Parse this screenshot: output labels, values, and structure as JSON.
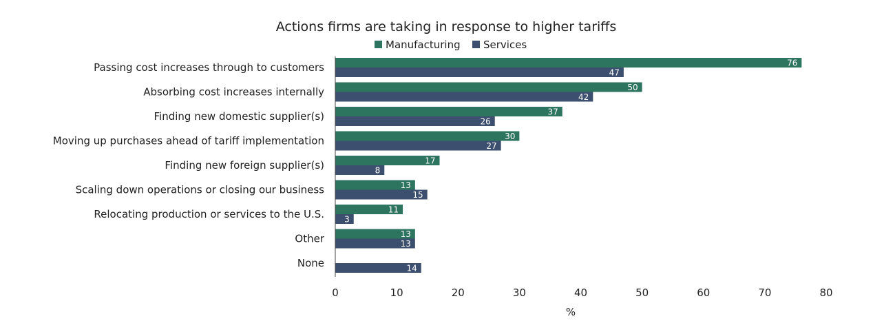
{
  "chart_data": {
    "type": "bar",
    "orientation": "horizontal",
    "title": "Actions firms are taking in response to higher tariffs",
    "xlabel": "%",
    "ylabel": "",
    "xlim": [
      0,
      80
    ],
    "xticks": [
      0,
      10,
      20,
      30,
      40,
      50,
      60,
      70,
      80
    ],
    "grid": false,
    "legend_position": "top",
    "categories": [
      "Passing cost increases through to customers",
      "Absorbing cost increases internally",
      "Finding new domestic supplier(s)",
      "Moving up purchases ahead of tariff implementation",
      "Finding new foreign supplier(s)",
      "Scaling down operations or closing our business",
      "Relocating production or services to the U.S.",
      "Other",
      "None"
    ],
    "series": [
      {
        "name": "Manufacturing",
        "color": "#2e7560",
        "values": [
          76,
          50,
          37,
          30,
          17,
          13,
          11,
          13,
          null
        ]
      },
      {
        "name": "Services",
        "color": "#3d4f6e",
        "values": [
          47,
          42,
          26,
          27,
          8,
          15,
          3,
          13,
          14
        ]
      }
    ]
  }
}
